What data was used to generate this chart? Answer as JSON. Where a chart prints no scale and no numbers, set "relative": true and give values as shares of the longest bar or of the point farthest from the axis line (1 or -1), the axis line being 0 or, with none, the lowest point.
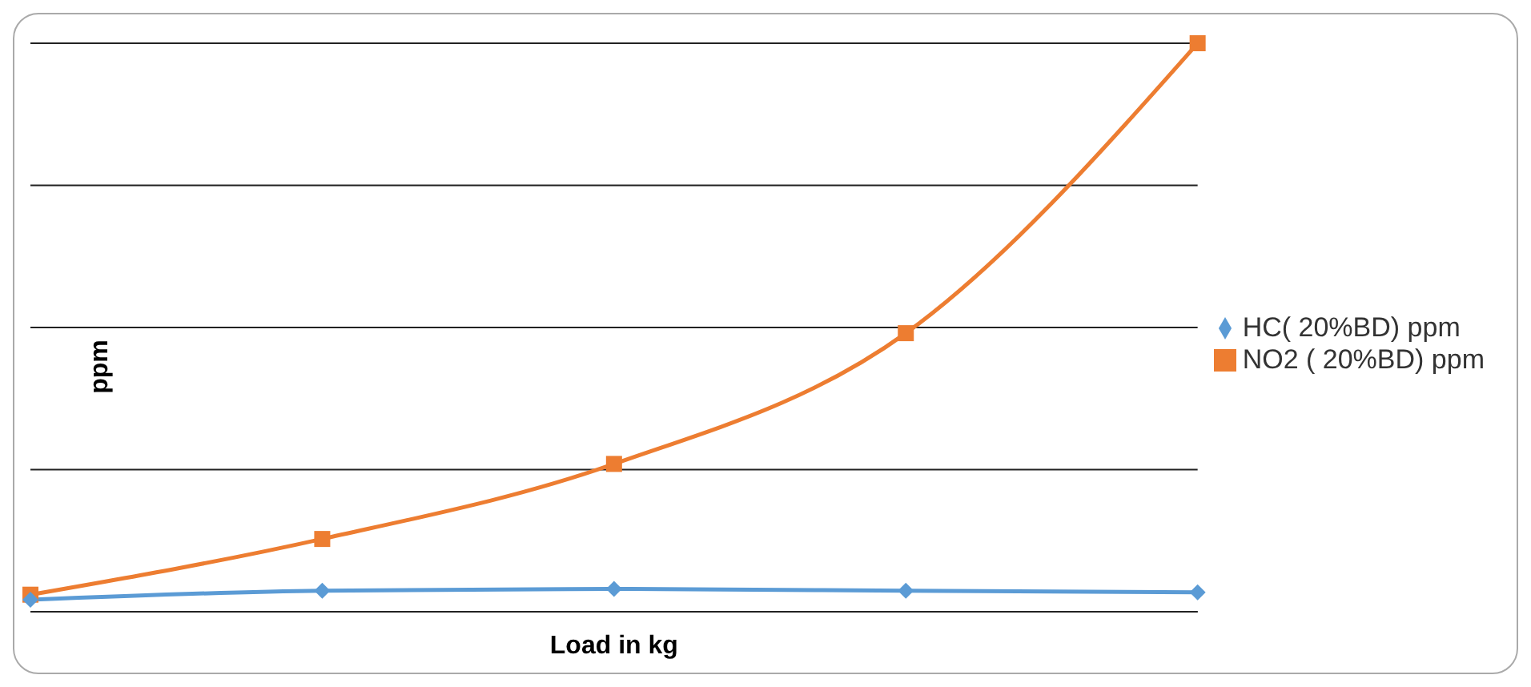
{
  "chart_data": {
    "type": "line",
    "xlabel": "Load in kg",
    "ylabel": "ppm",
    "relative": true,
    "categories": [
      null,
      null,
      null,
      null,
      null
    ],
    "series": [
      {
        "name": "HC( 20%BD) ppm",
        "color": "#5b9bd5",
        "marker": "diamond",
        "values": [
          0.021,
          0.037,
          0.04,
          0.037,
          0.034
        ]
      },
      {
        "name": "NO2 ( 20%BD) ppm",
        "color": "#ed7d31",
        "marker": "square",
        "values": [
          0.03,
          0.128,
          0.26,
          0.49,
          1
        ]
      }
    ],
    "grid": "y",
    "legend": "right"
  }
}
